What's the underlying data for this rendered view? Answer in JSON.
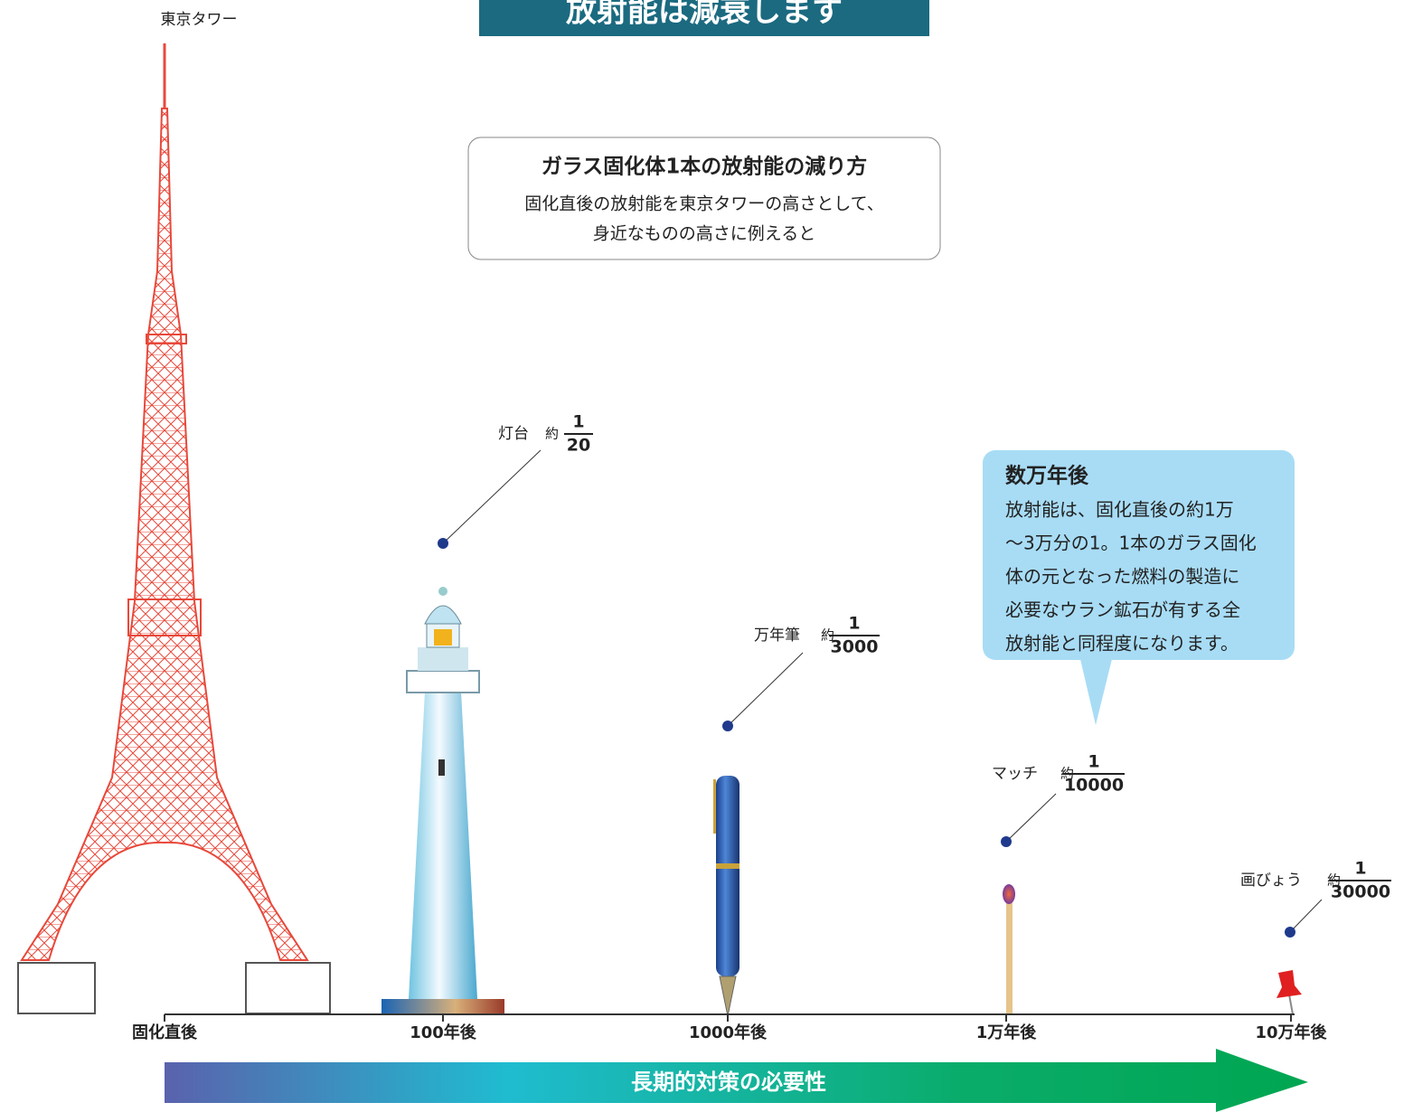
{
  "header": {
    "title": "放射能は減衰します"
  },
  "intro": {
    "title": "ガラス固化体1本の放射能の減り方",
    "lines": [
      "固化直後の放射能を東京タワーの高さとして、",
      "身近なものの高さに例えると"
    ]
  },
  "tower_label": "東京タワー",
  "items": [
    {
      "label": "灯台",
      "prefix": "約",
      "numerator": "1",
      "denominator": "20"
    },
    {
      "label": "万年筆",
      "prefix": "約",
      "numerator": "1",
      "denominator": "3000"
    },
    {
      "label": "マッチ",
      "prefix": "約",
      "numerator": "1",
      "denominator": "10000"
    },
    {
      "label": "画びょう",
      "prefix": "約",
      "numerator": "1",
      "denominator": "30000"
    }
  ],
  "callout": {
    "title": "数万年後",
    "lines": [
      "放射能は、固化直後の約1万",
      "〜3万分の1。1本のガラス固化",
      "体の元となった燃料の製造に",
      "必要なウラン鉱石が有する全",
      "放射能と同程度になります。"
    ]
  },
  "axis": {
    "ticks": [
      "固化直後",
      "100年後",
      "1000年後",
      "1万年後",
      "10万年後"
    ]
  },
  "arrow_label": "長期的対策の必要性"
}
